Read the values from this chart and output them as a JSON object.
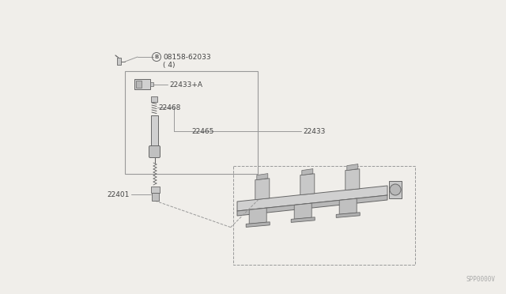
{
  "bg_color": "#f0eeea",
  "line_color": "#999999",
  "dark_line_color": "#666666",
  "text_color": "#444444",
  "fig_width": 6.4,
  "fig_height": 3.72,
  "watermark": "SPP0000V",
  "labels": {
    "bolt": "08158-62033",
    "bolt_qty": "( 4)",
    "coil_assy": "22433+A",
    "spring": "22468",
    "coil_body": "22465",
    "coil_full": "22433",
    "spark_plug": "22401"
  }
}
